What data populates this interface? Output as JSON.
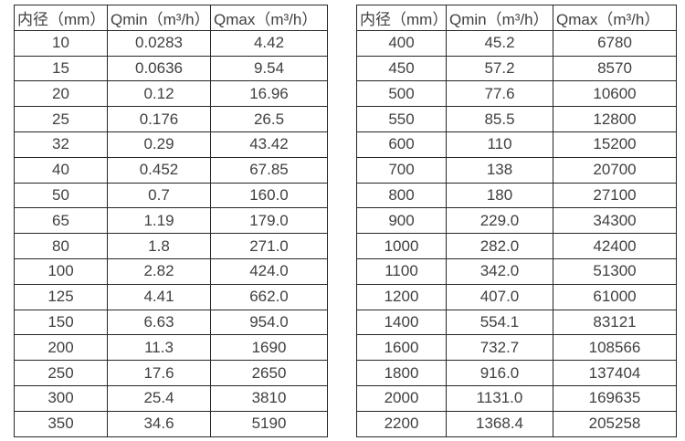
{
  "page": {
    "background_color": "#ffffff",
    "text_color": "#404040",
    "border_color": "#262626"
  },
  "tables": [
    {
      "name": "small-diameter-flow-table",
      "headers": [
        "内径（mm）",
        "Qmin（m³/h）",
        "Qmax（m³/h）"
      ],
      "rows": [
        [
          "10",
          "0.0283",
          "4.42"
        ],
        [
          "15",
          "0.0636",
          "9.54"
        ],
        [
          "20",
          "0.12",
          "16.96"
        ],
        [
          "25",
          "0.176",
          "26.5"
        ],
        [
          "32",
          "0.29",
          "43.42"
        ],
        [
          "40",
          "0.452",
          "67.85"
        ],
        [
          "50",
          "0.7",
          "160.0"
        ],
        [
          "65",
          "1.19",
          "179.0"
        ],
        [
          "80",
          "1.8",
          "271.0"
        ],
        [
          "100",
          "2.82",
          "424.0"
        ],
        [
          "125",
          "4.41",
          "662.0"
        ],
        [
          "150",
          "6.63",
          "954.0"
        ],
        [
          "200",
          "11.3",
          "1690"
        ],
        [
          "250",
          "17.6",
          "2650"
        ],
        [
          "300",
          "25.4",
          "3810"
        ],
        [
          "350",
          "34.6",
          "5190"
        ]
      ]
    },
    {
      "name": "large-diameter-flow-table",
      "headers": [
        "内径（mm）",
        "Qmin（m³/h）",
        "Qmax（m³/h）"
      ],
      "rows": [
        [
          "400",
          "45.2",
          "6780"
        ],
        [
          "450",
          "57.2",
          "8570"
        ],
        [
          "500",
          "77.6",
          "10600"
        ],
        [
          "550",
          "85.5",
          "12800"
        ],
        [
          "600",
          "110",
          "15200"
        ],
        [
          "700",
          "138",
          "20700"
        ],
        [
          "800",
          "180",
          "27100"
        ],
        [
          "900",
          "229.0",
          "34300"
        ],
        [
          "1000",
          "282.0",
          "42400"
        ],
        [
          "1100",
          "342.0",
          "51300"
        ],
        [
          "1200",
          "407.0",
          "61000"
        ],
        [
          "1400",
          "554.1",
          "83121"
        ],
        [
          "1600",
          "732.7",
          "108566"
        ],
        [
          "1800",
          "916.0",
          "137404"
        ],
        [
          "2000",
          "1131.0",
          "169635"
        ],
        [
          "2200",
          "1368.4",
          "205258"
        ]
      ]
    }
  ]
}
